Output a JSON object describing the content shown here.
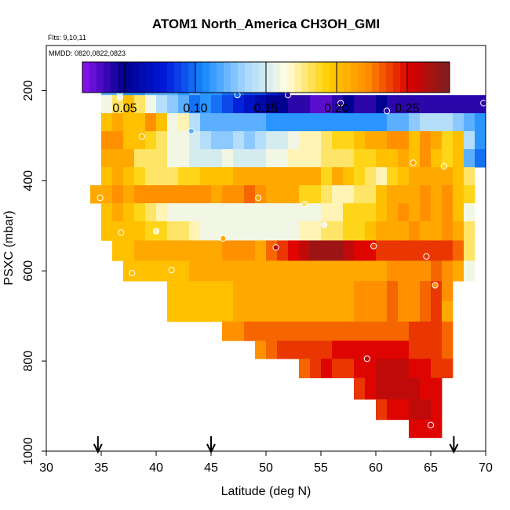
{
  "chart_data": {
    "type": "heatmap",
    "title": "ATOM1 North_America CH3OH_GMI",
    "annotations": [
      "Flts: 9,10,11",
      "MMDD: 0820,0822,0823"
    ],
    "xlabel": "Latitude (deg N)",
    "ylabel": "PSXC (mbar)",
    "xlim": [
      30,
      70
    ],
    "ylim": [
      1000,
      100
    ],
    "xticks": [
      30,
      35,
      40,
      45,
      50,
      55,
      60,
      65,
      70
    ],
    "yticks": [
      200,
      400,
      600,
      800,
      1000
    ],
    "colorbar": {
      "min": 0.02,
      "max": 0.28,
      "ticks": [
        0.05,
        0.1,
        0.15,
        0.2,
        0.25
      ],
      "tick_labels": [
        "0.05",
        "0.10",
        "0.15",
        "0.20",
        "0.25"
      ],
      "colors": [
        "#8a14f0",
        "#00008c",
        "#0018d8",
        "#1a8cff",
        "#a8d8ff",
        "#fffde0",
        "#ffd000",
        "#ff8c00",
        "#dd0000",
        "#7a1f1f"
      ]
    },
    "lat_step": 1.0,
    "rows": [
      {
        "p": 190,
        "lat0": 35,
        "values": [
          0.12,
          0.12,
          0.11,
          0.11,
          0.12,
          0.12,
          0.12,
          0.11,
          0.12,
          0.11,
          0.11,
          0.1,
          0.1,
          0.09,
          0.09,
          0.08,
          0.07
        ]
      },
      {
        "p": 230,
        "lat0": 35,
        "values": [
          0.16,
          0.18,
          0.2,
          0.18,
          0.16,
          0.14,
          0.13,
          0.12,
          0.1,
          0.11,
          0.1,
          0.09,
          0.08,
          0.07,
          0.06,
          0.05,
          0.05,
          0.04,
          0.04,
          0.03,
          0.03,
          0.04,
          0.05,
          0.04,
          0.04,
          0.05,
          0.04,
          0.04,
          0.04,
          0.04,
          0.04,
          0.04,
          0.04,
          0.04,
          0.04
        ]
      },
      {
        "p": 270,
        "lat0": 35,
        "values": [
          0.2,
          0.21,
          0.2,
          0.2,
          0.22,
          0.2,
          0.16,
          0.17,
          0.14,
          0.12,
          0.12,
          0.12,
          0.12,
          0.12,
          0.12,
          0.11,
          0.11,
          0.11,
          0.11,
          0.11,
          0.11,
          0.11,
          0.11,
          0.11,
          0.11,
          0.11,
          0.12,
          0.12,
          0.13,
          0.14,
          0.14,
          0.14,
          0.13,
          0.12,
          0.11
        ]
      },
      {
        "p": 310,
        "lat0": 35,
        "values": [
          0.22,
          0.22,
          0.2,
          0.2,
          0.19,
          0.18,
          0.16,
          0.16,
          0.15,
          0.14,
          0.13,
          0.13,
          0.14,
          0.13,
          0.14,
          0.15,
          0.15,
          0.16,
          0.17,
          0.17,
          0.18,
          0.19,
          0.19,
          0.2,
          0.21,
          0.21,
          0.22,
          0.22,
          0.2,
          0.22,
          0.21,
          0.19,
          0.2,
          0.14,
          0.11
        ]
      },
      {
        "p": 350,
        "lat0": 35,
        "values": [
          0.21,
          0.21,
          0.21,
          0.18,
          0.18,
          0.18,
          0.16,
          0.16,
          0.15,
          0.15,
          0.15,
          0.16,
          0.15,
          0.15,
          0.15,
          0.16,
          0.16,
          0.17,
          0.17,
          0.17,
          0.18,
          0.18,
          0.18,
          0.19,
          0.19,
          0.2,
          0.2,
          0.21,
          0.2,
          0.22,
          0.2,
          0.19,
          0.2,
          0.12,
          0.1
        ]
      },
      {
        "p": 390,
        "lat0": 35,
        "values": [
          0.2,
          0.21,
          0.2,
          0.19,
          0.18,
          0.18,
          0.18,
          0.19,
          0.19,
          0.2,
          0.2,
          0.2,
          0.21,
          0.21,
          0.21,
          0.21,
          0.21,
          0.21,
          0.21,
          0.21,
          0.19,
          0.21,
          0.2,
          0.19,
          0.18,
          0.17,
          0.19,
          0.2,
          0.21,
          0.21,
          0.21,
          0.21,
          0.2,
          0.18
        ]
      },
      {
        "p": 430,
        "lat0": 34,
        "values": [
          0.21,
          0.21,
          0.22,
          0.21,
          0.22,
          0.22,
          0.22,
          0.22,
          0.22,
          0.22,
          0.22,
          0.21,
          0.22,
          0.22,
          0.23,
          0.22,
          0.21,
          0.21,
          0.21,
          0.19,
          0.19,
          0.18,
          0.17,
          0.17,
          0.18,
          0.18,
          0.2,
          0.21,
          0.21,
          0.21,
          0.22,
          0.21,
          0.22,
          0.2,
          0.19
        ]
      },
      {
        "p": 470,
        "lat0": 35,
        "values": [
          0.2,
          0.21,
          0.2,
          0.19,
          0.18,
          0.17,
          0.16,
          0.16,
          0.16,
          0.16,
          0.16,
          0.16,
          0.16,
          0.16,
          0.16,
          0.16,
          0.16,
          0.16,
          0.16,
          0.16,
          0.17,
          0.17,
          0.19,
          0.19,
          0.19,
          0.2,
          0.21,
          0.22,
          0.21,
          0.22,
          0.21,
          0.22,
          0.2,
          0.16
        ]
      },
      {
        "p": 510,
        "lat0": 35,
        "values": [
          0.2,
          0.2,
          0.2,
          0.2,
          0.19,
          0.19,
          0.18,
          0.18,
          0.17,
          0.16,
          0.16,
          0.16,
          0.16,
          0.16,
          0.16,
          0.16,
          0.16,
          0.16,
          0.17,
          0.17,
          0.18,
          0.18,
          0.19,
          0.19,
          0.2,
          0.21,
          0.21,
          0.21,
          0.22,
          0.21,
          0.21,
          0.22,
          0.21,
          0.18
        ]
      },
      {
        "p": 555,
        "lat0": 36,
        "values": [
          0.2,
          0.2,
          0.21,
          0.21,
          0.21,
          0.21,
          0.21,
          0.21,
          0.21,
          0.21,
          0.22,
          0.22,
          0.22,
          0.21,
          0.23,
          0.24,
          0.25,
          0.26,
          0.27,
          0.27,
          0.27,
          0.26,
          0.25,
          0.25,
          0.24,
          0.24,
          0.24,
          0.24,
          0.24,
          0.24,
          0.24,
          0.23,
          0.18
        ]
      },
      {
        "p": 600,
        "lat0": 37,
        "values": [
          0.2,
          0.2,
          0.2,
          0.2,
          0.2,
          0.2,
          0.21,
          0.21,
          0.21,
          0.21,
          0.21,
          0.21,
          0.21,
          0.21,
          0.21,
          0.21,
          0.21,
          0.21,
          0.21,
          0.21,
          0.21,
          0.21,
          0.21,
          0.21,
          0.22,
          0.22,
          0.22,
          0.22,
          0.23,
          0.22,
          0.21,
          0.16
        ]
      },
      {
        "p": 645,
        "lat0": 41,
        "values": [
          0.2,
          0.2,
          0.2,
          0.2,
          0.2,
          0.2,
          0.21,
          0.21,
          0.21,
          0.21,
          0.21,
          0.21,
          0.21,
          0.21,
          0.21,
          0.21,
          0.21,
          0.22,
          0.22,
          0.22,
          0.23,
          0.22,
          0.22,
          0.23,
          0.24,
          0.22
        ]
      },
      {
        "p": 690,
        "lat0": 41,
        "values": [
          0.2,
          0.2,
          0.2,
          0.2,
          0.2,
          0.2,
          0.21,
          0.21,
          0.21,
          0.21,
          0.21,
          0.21,
          0.21,
          0.21,
          0.21,
          0.21,
          0.21,
          0.22,
          0.22,
          0.22,
          0.23,
          0.22,
          0.22,
          0.23,
          0.24,
          0.21
        ]
      },
      {
        "p": 735,
        "lat0": 46,
        "values": [
          0.22,
          0.22,
          0.23,
          0.23,
          0.23,
          0.23,
          0.23,
          0.23,
          0.23,
          0.23,
          0.23,
          0.23,
          0.23,
          0.23,
          0.23,
          0.23,
          0.23,
          0.24,
          0.24,
          0.24,
          0.23
        ]
      },
      {
        "p": 775,
        "lat0": 49,
        "values": [
          0.22,
          0.23,
          0.24,
          0.24,
          0.24,
          0.24,
          0.24,
          0.25,
          0.25,
          0.25,
          0.25,
          0.25,
          0.25,
          0.25,
          0.24,
          0.24,
          0.24,
          0.23
        ]
      },
      {
        "p": 815,
        "lat0": 53,
        "values": [
          0.23,
          0.24,
          0.25,
          0.24,
          0.24,
          0.25,
          0.25,
          0.26,
          0.26,
          0.26,
          0.25,
          0.25,
          0.24,
          0.24
        ]
      },
      {
        "p": 860,
        "lat0": 58,
        "values": [
          0.24,
          0.25,
          0.26,
          0.26,
          0.26,
          0.26,
          0.25,
          0.25
        ]
      },
      {
        "p": 910,
        "lat0": 60,
        "values": [
          0.24,
          0.25,
          0.25,
          0.26,
          0.26,
          0.25
        ]
      },
      {
        "p": 950,
        "lat0": 63,
        "values": [
          0.25,
          0.25,
          0.25
        ]
      }
    ],
    "observations": [
      {
        "lat": 35.9,
        "p": 188,
        "value": 0.12
      },
      {
        "lat": 36.5,
        "p": 188,
        "value": 0.12
      },
      {
        "lat": 36.7,
        "p": 205,
        "value": 0.13
      },
      {
        "lat": 36.7,
        "p": 215,
        "value": 0.16
      },
      {
        "lat": 43.2,
        "p": 290,
        "value": 0.12
      },
      {
        "lat": 47.4,
        "p": 210,
        "value": 0.1
      },
      {
        "lat": 52.0,
        "p": 210,
        "value": 0.04
      },
      {
        "lat": 56.8,
        "p": 228,
        "value": 0.04
      },
      {
        "lat": 61.0,
        "p": 245,
        "value": 0.04
      },
      {
        "lat": 69.8,
        "p": 228,
        "value": 0.04
      },
      {
        "lat": 38.7,
        "p": 302,
        "value": 0.2
      },
      {
        "lat": 63.4,
        "p": 360,
        "value": 0.21
      },
      {
        "lat": 66.2,
        "p": 368,
        "value": 0.19
      },
      {
        "lat": 34.9,
        "p": 438,
        "value": 0.21
      },
      {
        "lat": 49.3,
        "p": 438,
        "value": 0.21
      },
      {
        "lat": 53.5,
        "p": 452,
        "value": 0.18
      },
      {
        "lat": 55.3,
        "p": 498,
        "value": 0.16
      },
      {
        "lat": 36.8,
        "p": 515,
        "value": 0.2
      },
      {
        "lat": 40.0,
        "p": 512,
        "value": 0.17
      },
      {
        "lat": 46.1,
        "p": 528,
        "value": 0.21
      },
      {
        "lat": 50.9,
        "p": 548,
        "value": 0.26
      },
      {
        "lat": 59.8,
        "p": 545,
        "value": 0.24
      },
      {
        "lat": 64.6,
        "p": 568,
        "value": 0.24
      },
      {
        "lat": 37.8,
        "p": 605,
        "value": 0.2
      },
      {
        "lat": 41.4,
        "p": 598,
        "value": 0.2
      },
      {
        "lat": 65.4,
        "p": 632,
        "value": 0.22
      },
      {
        "lat": 59.2,
        "p": 795,
        "value": 0.26
      },
      {
        "lat": 65.0,
        "p": 942,
        "value": 0.25
      }
    ],
    "arrows_at_lat": [
      34.7,
      45.0,
      67.1
    ],
    "grid": false,
    "legend": "colorbar top"
  }
}
